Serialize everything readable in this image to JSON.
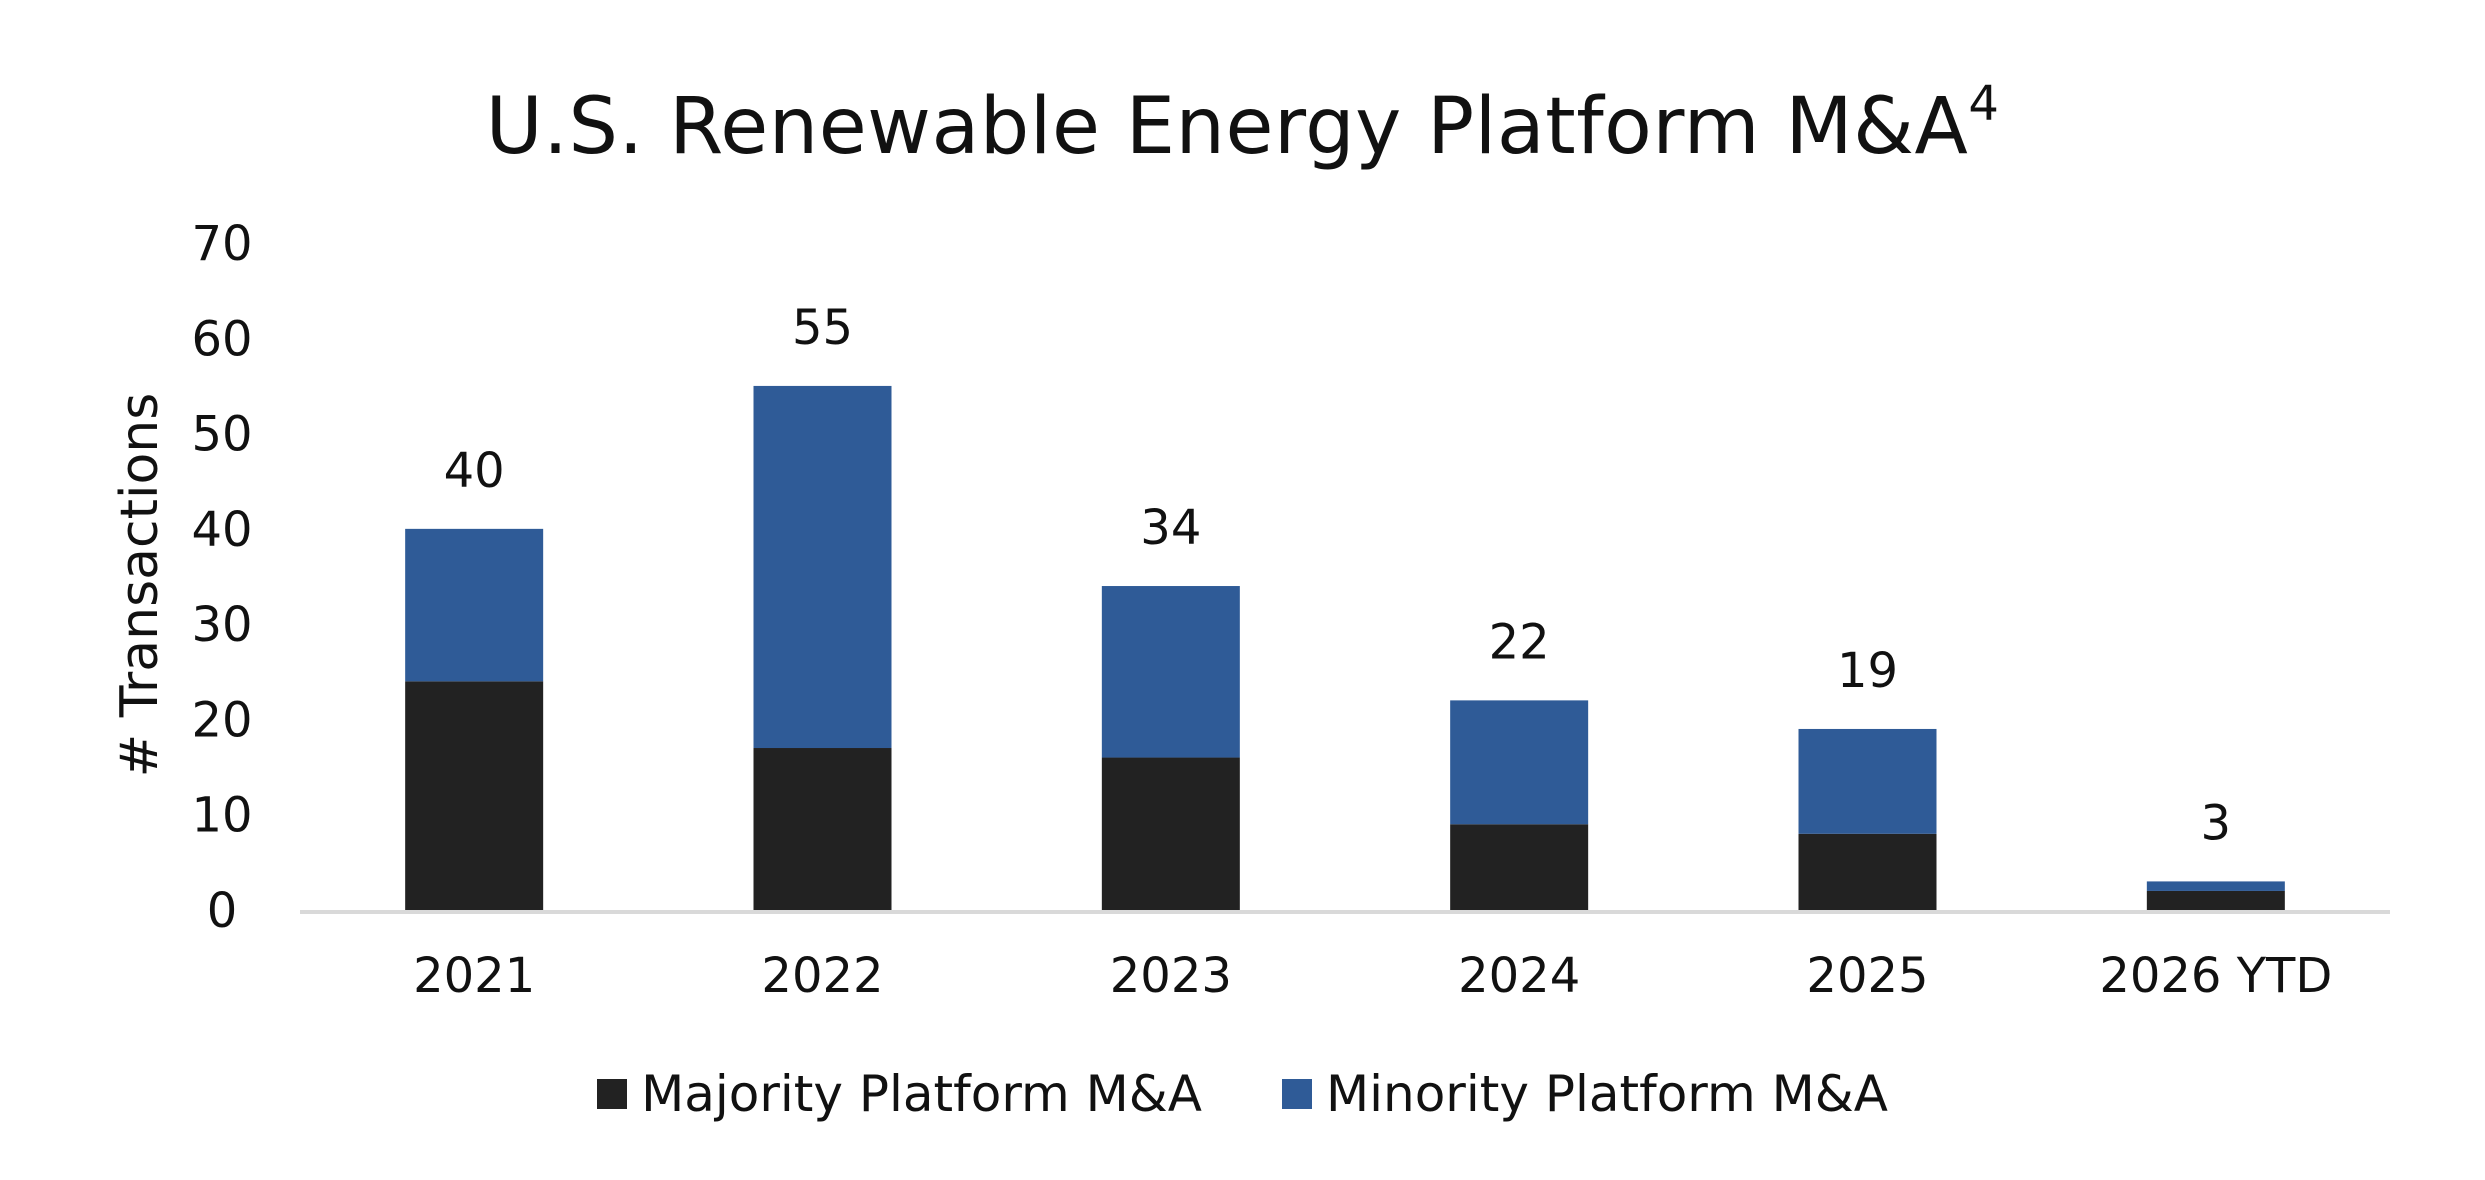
{
  "chart_data": {
    "type": "bar",
    "stacked": true,
    "title": "U.S. Renewable Energy Platform M&A",
    "title_superscript": "4",
    "xlabel": "",
    "ylabel": "# Transactions",
    "ylim": [
      0,
      70
    ],
    "yticks": [
      0,
      10,
      20,
      30,
      40,
      50,
      60,
      70
    ],
    "grid": false,
    "legend_position": "bottom",
    "categories": [
      "2021",
      "2022",
      "2023",
      "2024",
      "2025",
      "2026 YTD"
    ],
    "series": [
      {
        "name": "Majority Platform M&A",
        "color": "#222222",
        "values": [
          24,
          17,
          16,
          9,
          8,
          2
        ]
      },
      {
        "name": "Minority Platform M&A",
        "color": "#2f5b97",
        "values": [
          16,
          38,
          18,
          13,
          11,
          1
        ]
      }
    ],
    "totals": [
      40,
      55,
      34,
      22,
      19,
      3
    ]
  }
}
